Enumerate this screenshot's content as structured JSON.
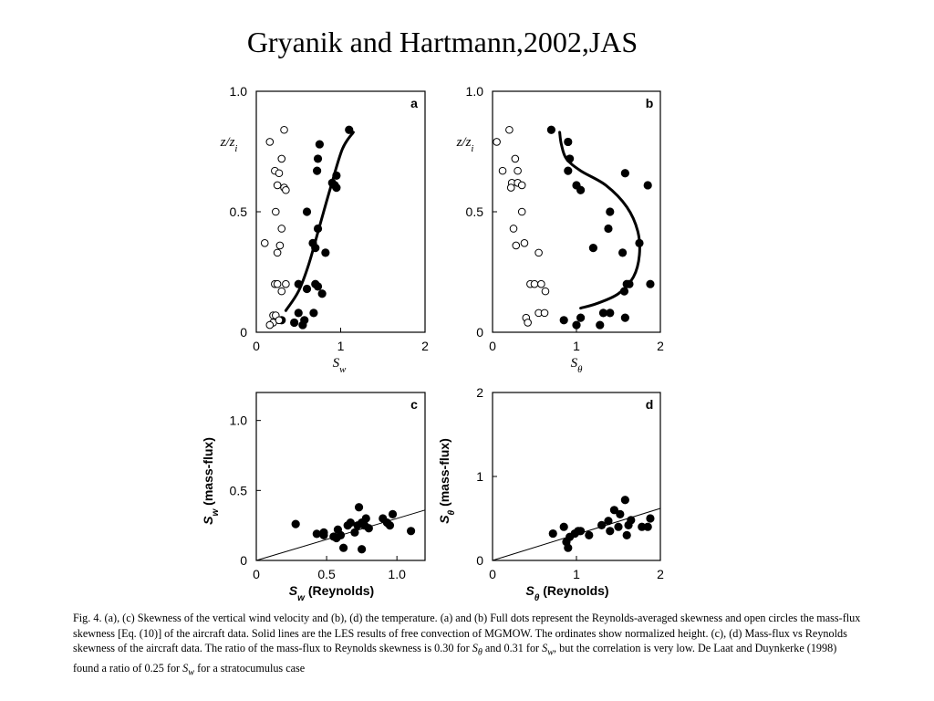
{
  "title": "Gryanik and Hartmann,2002,JAS",
  "chart_data": [
    {
      "panel": "a",
      "type": "scatter",
      "xlabel": "S",
      "xlabel_sub": "w",
      "ylabel": "z/z",
      "ylabel_sub": "i",
      "xlim": [
        0,
        2
      ],
      "ylim": [
        0,
        1.0
      ],
      "xticks": [
        "0",
        "1",
        "2"
      ],
      "yticks": [
        "0",
        "0.5",
        "1.0"
      ],
      "series": [
        {
          "marker": "filled",
          "points": [
            [
              1.1,
              0.84
            ],
            [
              0.75,
              0.78
            ],
            [
              0.73,
              0.72
            ],
            [
              0.72,
              0.67
            ],
            [
              0.95,
              0.65
            ],
            [
              0.9,
              0.62
            ],
            [
              0.93,
              0.61
            ],
            [
              0.95,
              0.6
            ],
            [
              0.6,
              0.5
            ],
            [
              0.73,
              0.43
            ],
            [
              0.67,
              0.37
            ],
            [
              0.7,
              0.35
            ],
            [
              0.82,
              0.33
            ],
            [
              0.5,
              0.2
            ],
            [
              0.6,
              0.18
            ],
            [
              0.7,
              0.2
            ],
            [
              0.73,
              0.19
            ],
            [
              0.78,
              0.16
            ],
            [
              0.3,
              0.05
            ],
            [
              0.45,
              0.04
            ],
            [
              0.5,
              0.08
            ],
            [
              0.57,
              0.05
            ],
            [
              0.55,
              0.03
            ],
            [
              0.68,
              0.08
            ]
          ]
        },
        {
          "marker": "open",
          "points": [
            [
              0.33,
              0.84
            ],
            [
              0.16,
              0.79
            ],
            [
              0.3,
              0.72
            ],
            [
              0.22,
              0.67
            ],
            [
              0.27,
              0.66
            ],
            [
              0.25,
              0.61
            ],
            [
              0.33,
              0.6
            ],
            [
              0.35,
              0.59
            ],
            [
              0.23,
              0.5
            ],
            [
              0.3,
              0.43
            ],
            [
              0.1,
              0.37
            ],
            [
              0.28,
              0.36
            ],
            [
              0.25,
              0.33
            ],
            [
              0.22,
              0.2
            ],
            [
              0.25,
              0.2
            ],
            [
              0.35,
              0.2
            ],
            [
              0.3,
              0.17
            ],
            [
              0.2,
              0.07
            ],
            [
              0.23,
              0.07
            ],
            [
              0.2,
              0.04
            ],
            [
              0.16,
              0.03
            ],
            [
              0.27,
              0.05
            ]
          ]
        }
      ],
      "les_curve": [
        [
          0.35,
          0.09
        ],
        [
          0.5,
          0.17
        ],
        [
          0.62,
          0.28
        ],
        [
          0.75,
          0.44
        ],
        [
          0.88,
          0.6
        ],
        [
          1.02,
          0.76
        ],
        [
          1.15,
          0.83
        ]
      ]
    },
    {
      "panel": "b",
      "type": "scatter",
      "xlabel": "S",
      "xlabel_sub": "θ",
      "ylabel": "z/z",
      "ylabel_sub": "i",
      "xlim": [
        0,
        2
      ],
      "ylim": [
        0,
        1.0
      ],
      "xticks": [
        "0",
        "1",
        "2"
      ],
      "yticks": [
        "0",
        "0.5",
        "1.0"
      ],
      "series": [
        {
          "marker": "filled",
          "points": [
            [
              0.7,
              0.84
            ],
            [
              0.9,
              0.79
            ],
            [
              0.92,
              0.72
            ],
            [
              0.9,
              0.67
            ],
            [
              1.58,
              0.66
            ],
            [
              1.85,
              0.61
            ],
            [
              1.0,
              0.61
            ],
            [
              1.05,
              0.59
            ],
            [
              1.4,
              0.5
            ],
            [
              1.38,
              0.43
            ],
            [
              1.55,
              0.33
            ],
            [
              1.2,
              0.35
            ],
            [
              1.75,
              0.37
            ],
            [
              1.6,
              0.2
            ],
            [
              1.63,
              0.2
            ],
            [
              1.57,
              0.17
            ],
            [
              1.88,
              0.2
            ],
            [
              0.85,
              0.05
            ],
            [
              1.0,
              0.03
            ],
            [
              1.05,
              0.06
            ],
            [
              1.28,
              0.03
            ],
            [
              1.32,
              0.08
            ],
            [
              1.4,
              0.08
            ],
            [
              1.58,
              0.06
            ]
          ]
        },
        {
          "marker": "open",
          "points": [
            [
              0.2,
              0.84
            ],
            [
              0.05,
              0.79
            ],
            [
              0.27,
              0.72
            ],
            [
              0.12,
              0.67
            ],
            [
              0.3,
              0.67
            ],
            [
              0.23,
              0.62
            ],
            [
              0.3,
              0.62
            ],
            [
              0.35,
              0.61
            ],
            [
              0.22,
              0.6
            ],
            [
              0.35,
              0.5
            ],
            [
              0.25,
              0.43
            ],
            [
              0.28,
              0.36
            ],
            [
              0.38,
              0.37
            ],
            [
              0.55,
              0.33
            ],
            [
              0.45,
              0.2
            ],
            [
              0.5,
              0.2
            ],
            [
              0.58,
              0.2
            ],
            [
              0.63,
              0.17
            ],
            [
              0.55,
              0.08
            ],
            [
              0.62,
              0.08
            ],
            [
              0.4,
              0.06
            ],
            [
              0.42,
              0.04
            ]
          ]
        }
      ],
      "les_curve": [
        [
          0.8,
          0.83
        ],
        [
          0.82,
          0.78
        ],
        [
          0.88,
          0.72
        ],
        [
          1.05,
          0.67
        ],
        [
          1.35,
          0.61
        ],
        [
          1.6,
          0.52
        ],
        [
          1.73,
          0.42
        ],
        [
          1.75,
          0.32
        ],
        [
          1.68,
          0.23
        ],
        [
          1.5,
          0.16
        ],
        [
          1.25,
          0.12
        ],
        [
          1.05,
          0.1
        ]
      ]
    },
    {
      "panel": "c",
      "type": "scatter",
      "xlabel": "S",
      "xlabel_sub": "w",
      "xlabel_suffix": " (Reynolds)",
      "ylabel": "S",
      "ylabel_sub": "w",
      "ylabel_suffix": " (mass-flux)",
      "xlim": [
        0,
        1.2
      ],
      "ylim": [
        0,
        1.2
      ],
      "xticks": [
        "0",
        "0.5",
        "1.0"
      ],
      "yticks": [
        "0",
        "0.5",
        "1.0"
      ],
      "series": [
        {
          "marker": "filled",
          "points": [
            [
              0.28,
              0.26
            ],
            [
              0.43,
              0.19
            ],
            [
              0.48,
              0.18
            ],
            [
              0.48,
              0.2
            ],
            [
              0.55,
              0.17
            ],
            [
              0.57,
              0.16
            ],
            [
              0.58,
              0.22
            ],
            [
              0.6,
              0.18
            ],
            [
              0.65,
              0.25
            ],
            [
              0.67,
              0.27
            ],
            [
              0.7,
              0.2
            ],
            [
              0.72,
              0.25
            ],
            [
              0.73,
              0.38
            ],
            [
              0.75,
              0.27
            ],
            [
              0.77,
              0.25
            ],
            [
              0.78,
              0.3
            ],
            [
              0.8,
              0.23
            ],
            [
              0.9,
              0.3
            ],
            [
              0.93,
              0.27
            ],
            [
              0.95,
              0.25
            ],
            [
              0.97,
              0.33
            ],
            [
              1.1,
              0.21
            ],
            [
              0.62,
              0.09
            ],
            [
              0.75,
              0.08
            ]
          ]
        }
      ],
      "fit_line": [
        [
          0,
          0
        ],
        [
          1.2,
          0.36
        ]
      ]
    },
    {
      "panel": "d",
      "type": "scatter",
      "xlabel": "S",
      "xlabel_sub": "θ",
      "xlabel_suffix": " (Reynolds)",
      "ylabel": "S",
      "ylabel_sub": "θ",
      "ylabel_suffix": " (mass-flux)",
      "xlim": [
        0,
        2
      ],
      "ylim": [
        0,
        2
      ],
      "xticks": [
        "0",
        "1",
        "2"
      ],
      "yticks": [
        "0",
        "1",
        "2"
      ],
      "series": [
        {
          "marker": "filled",
          "points": [
            [
              0.72,
              0.32
            ],
            [
              0.85,
              0.4
            ],
            [
              0.88,
              0.22
            ],
            [
              0.9,
              0.15
            ],
            [
              0.92,
              0.28
            ],
            [
              0.98,
              0.32
            ],
            [
              1.02,
              0.35
            ],
            [
              1.05,
              0.35
            ],
            [
              1.15,
              0.3
            ],
            [
              1.3,
              0.42
            ],
            [
              1.38,
              0.47
            ],
            [
              1.4,
              0.35
            ],
            [
              1.45,
              0.6
            ],
            [
              1.5,
              0.4
            ],
            [
              1.52,
              0.55
            ],
            [
              1.58,
              0.72
            ],
            [
              1.6,
              0.3
            ],
            [
              1.62,
              0.42
            ],
            [
              1.65,
              0.48
            ],
            [
              1.78,
              0.4
            ],
            [
              1.85,
              0.4
            ],
            [
              1.88,
              0.5
            ]
          ]
        }
      ],
      "fit_line": [
        [
          0,
          0
        ],
        [
          2,
          0.62
        ]
      ]
    }
  ],
  "caption": {
    "p1": "Fig. 4. (a), (c) Skewness of the vertical wind velocity and (b), (d) the temperature. (a) and (b) Full dots represent the Reynolds-averaged skewness and open circles the mass-flux skewness [Eq. (10)] of the aircraft data. Solid lines are the LES results of free convection of MGMOW. The ordinates show normalized height. (c), (d) Mass-flux vs Reynolds skewness of the aircraft data. The ratio of the mass-flux to Reynolds skewness is 0.30 for ",
    "s_theta_base": "S",
    "s_theta_sub": "θ",
    "p2": " and 0.31 for ",
    "s_w_base": "S",
    "s_w_sub": "w",
    "p3": ", but the correlation is very low. De Laat and Duynkerke (1998) found a ratio of 0.25 for ",
    "p4": " for a stratocumulus case"
  }
}
